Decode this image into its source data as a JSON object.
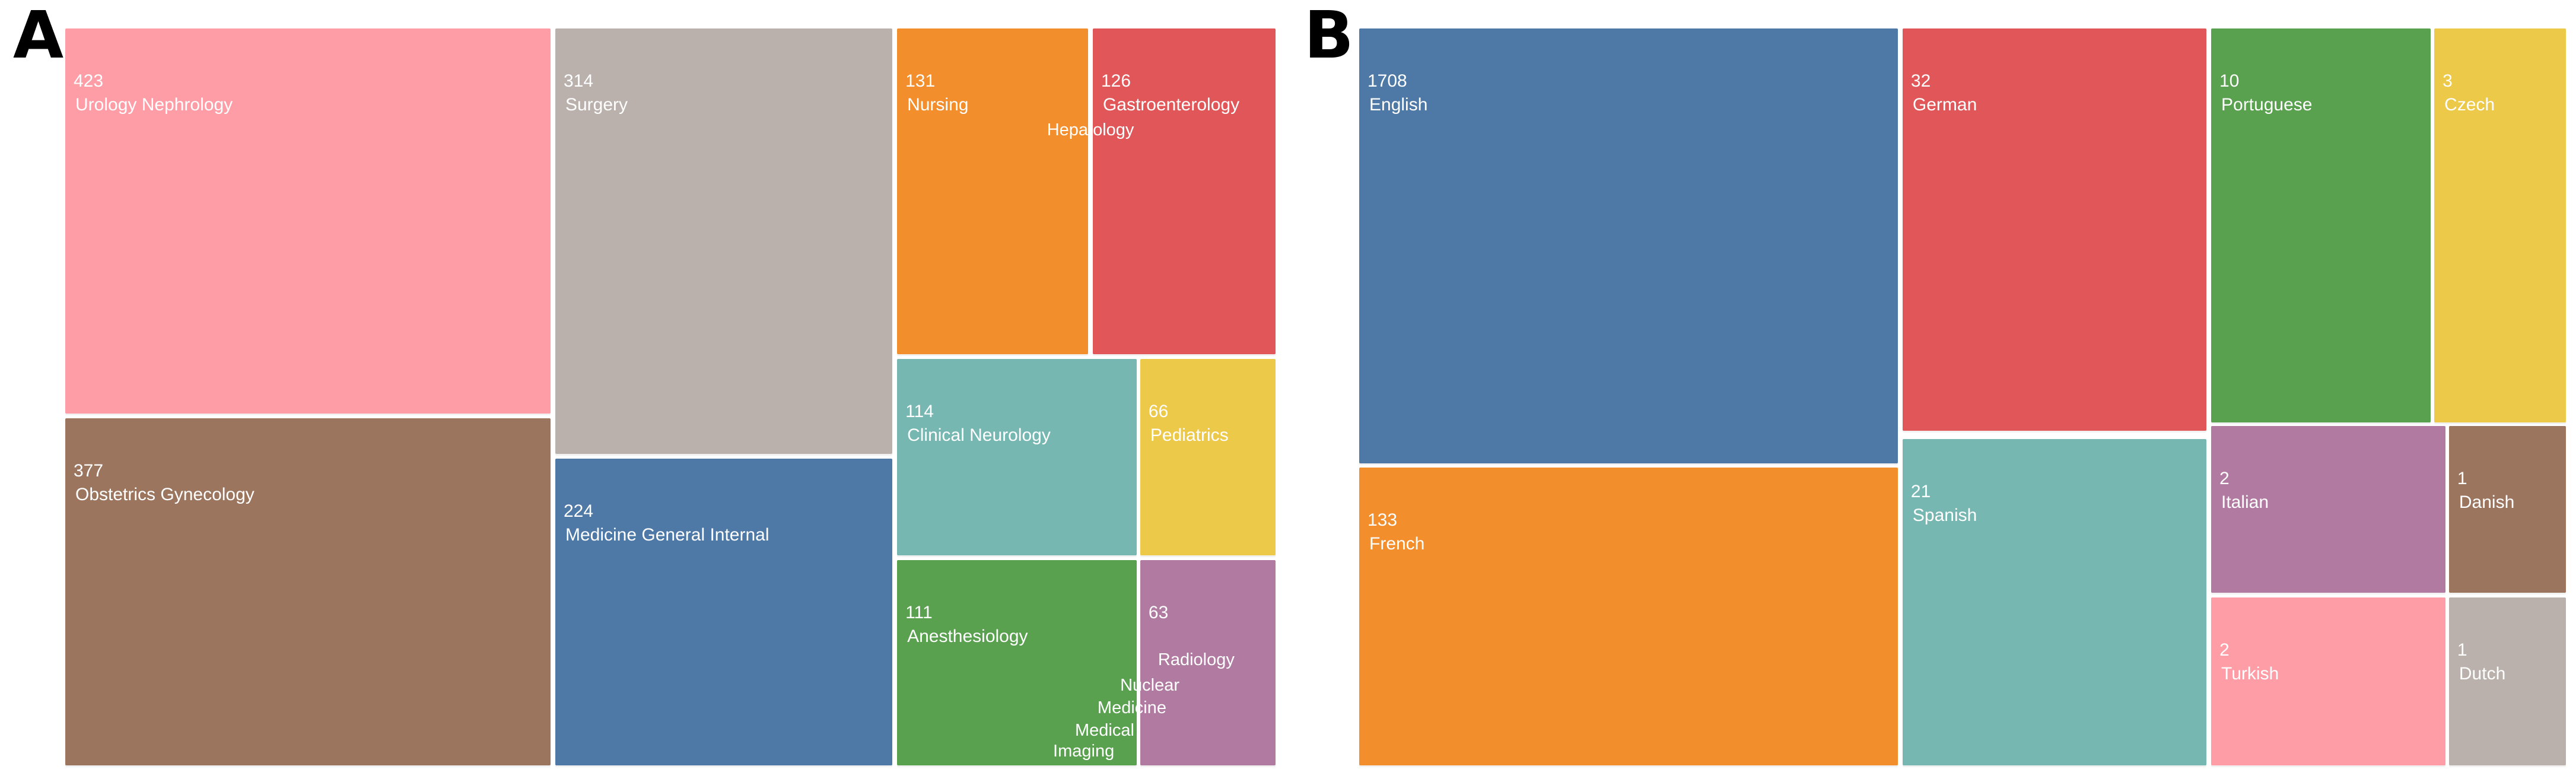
{
  "figure": {
    "background": "#ffffff",
    "panel_a_letter": "A",
    "panel_b_letter": "B"
  },
  "palette": {
    "blue": "#4E79A7",
    "orange": "#F28E2B",
    "red": "#E15759",
    "teal": "#76B7B2",
    "green": "#59A14F",
    "yellow": "#EDC949",
    "purple": "#B07AA1",
    "pink": "#FF9DA7",
    "brown": "#9C755F",
    "gray": "#BAB0AC"
  },
  "chart_data": [
    {
      "type": "treemap",
      "panel": "A",
      "title": "A",
      "legend_position": "none",
      "value_label_position": "top-left inside tile",
      "items": [
        {
          "label": "Urology Nephrology",
          "value": 423,
          "color": "#FF9DA7"
        },
        {
          "label": "Obstetrics Gynecology",
          "value": 377,
          "color": "#9C755F"
        },
        {
          "label": "Surgery",
          "value": 314,
          "color": "#BAB0AC"
        },
        {
          "label": "Medicine General Internal",
          "value": 224,
          "color": "#4E79A7"
        },
        {
          "label": "Nursing",
          "value": 131,
          "color": "#F28E2B"
        },
        {
          "label": "Gastroenterology",
          "value": 126,
          "color": "#E15759"
        },
        {
          "label": "Hepatology",
          "value": null,
          "color": null
        },
        {
          "label": "Clinical Neurology",
          "value": 114,
          "color": "#76B7B2"
        },
        {
          "label": "Pediatrics",
          "value": 66,
          "color": "#EDC949"
        },
        {
          "label": "Anesthesiology",
          "value": 111,
          "color": "#59A14F"
        },
        {
          "label": "Radiology Nuclear Medicine Medical Imaging",
          "value": 63,
          "color": "#B07AA1",
          "label_lines": [
            "Radiology",
            "Nuclear",
            "Medicine",
            "Medical",
            "Imaging"
          ]
        }
      ]
    },
    {
      "type": "treemap",
      "panel": "B",
      "title": "B",
      "legend_position": "none",
      "value_label_position": "top-left inside tile",
      "items": [
        {
          "label": "English",
          "value": 1708,
          "color": "#4E79A7"
        },
        {
          "label": "French",
          "value": 133,
          "color": "#F28E2B"
        },
        {
          "label": "German",
          "value": 32,
          "color": "#E15759"
        },
        {
          "label": "Spanish",
          "value": 21,
          "color": "#76B7B2"
        },
        {
          "label": "Portuguese",
          "value": 10,
          "color": "#59A14F"
        },
        {
          "label": "Czech",
          "value": 3,
          "color": "#EDC949"
        },
        {
          "label": "Italian",
          "value": 2,
          "color": "#B07AA1"
        },
        {
          "label": "Danish",
          "value": 1,
          "color": "#9C755F"
        },
        {
          "label": "Turkish",
          "value": 2,
          "color": "#FF9DA7"
        },
        {
          "label": "Dutch",
          "value": 1,
          "color": "#BAB0AC"
        }
      ]
    }
  ]
}
